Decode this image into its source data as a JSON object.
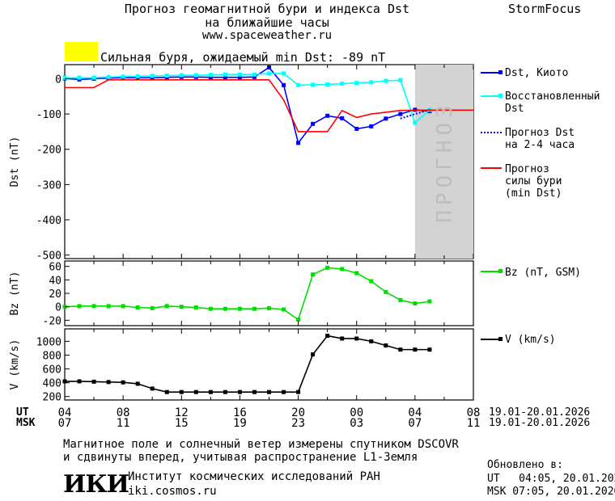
{
  "header": {
    "title_line1": "Прогноз геомагнитной бури и индекса Dst",
    "title_line2": "на ближайшие часы",
    "url": "www.spaceweather.ru",
    "brand": "StormFocus"
  },
  "status": {
    "text": "Сильная буря, ожидаемый min Dst: -89 nT",
    "color": "#ffff00"
  },
  "forecast_label": "ПРОГНОЗ",
  "legend": {
    "dst_kyoto": "Dst, Киото",
    "restored_line1": "Восстановленный",
    "restored_line2": "Dst",
    "forecast_line1": "Прогноз Dst",
    "forecast_line2": "на 2-4 часа",
    "storm_line1": "Прогноз",
    "storm_line2": "силы бури",
    "storm_line3": "(min Dst)",
    "bz": "Bz (nT, GSM)",
    "v": "V (km/s)"
  },
  "axes": {
    "ut_label": "UT",
    "msk_label": "MSK",
    "ut_ticks": [
      "04",
      "08",
      "12",
      "16",
      "20",
      "00",
      "04",
      "08"
    ],
    "msk_ticks": [
      "07",
      "11",
      "15",
      "19",
      "23",
      "03",
      "07",
      "11"
    ],
    "date_range_ut": "19.01-20.01.2026",
    "date_range_msk": "19.01-20.01.2026"
  },
  "chart_data": [
    {
      "type": "line",
      "ylabel": "Dst (nT)",
      "ylim": [
        -510,
        40
      ],
      "yticks": [
        0,
        -100,
        -200,
        -300,
        -400,
        -500
      ],
      "x_unit": "hours since 04 UT 19.01.2026",
      "xlim": [
        0,
        28
      ],
      "forecast_region": [
        24,
        28
      ],
      "series": [
        {
          "name": "Dst, Киото",
          "color": "#0000ff",
          "x": [
            0,
            1,
            2,
            3,
            4,
            5,
            6,
            7,
            8,
            9,
            10,
            11,
            12,
            13,
            14,
            15,
            16,
            17,
            18,
            19,
            20,
            21,
            22,
            23,
            24,
            25
          ],
          "y": [
            1,
            -2,
            0,
            2,
            3,
            3,
            3,
            4,
            5,
            5,
            4,
            4,
            4,
            5,
            32,
            -18,
            -182,
            -128,
            -105,
            -112,
            -142,
            -135,
            -113,
            -100,
            -88,
            -92
          ]
        },
        {
          "name": "Восстановленный Dst",
          "color": "#00ffff",
          "x": [
            0,
            1,
            2,
            3,
            4,
            5,
            6,
            7,
            8,
            9,
            10,
            11,
            12,
            13,
            14,
            15,
            16,
            17,
            18,
            19,
            20,
            21,
            22,
            23,
            24,
            25
          ],
          "y": [
            3,
            3,
            3,
            5,
            6,
            7,
            8,
            9,
            10,
            10,
            11,
            12,
            12,
            12,
            15,
            15,
            -18,
            -17,
            -16,
            -14,
            -12,
            -10,
            -6,
            -4,
            -125,
            -88
          ]
        },
        {
          "name": "Прогноз Dst на 2-4 часа",
          "color": "#0000ff",
          "style": "dotted",
          "x": [
            23,
            24,
            25
          ],
          "y": [
            -113,
            -100,
            -88
          ]
        },
        {
          "name": "Прогноз силы бури (min Dst)",
          "color": "#ff0000",
          "x": [
            0,
            2,
            3,
            4,
            5,
            6,
            7,
            8,
            9,
            10,
            11,
            12,
            13,
            14,
            15,
            16,
            17,
            18,
            19,
            20,
            21,
            22,
            23,
            24,
            25,
            26,
            27,
            28
          ],
          "y": [
            -25,
            -25,
            -3,
            -3,
            -3,
            -3,
            -3,
            -3,
            -3,
            -3,
            -3,
            -3,
            -3,
            -3,
            -60,
            -150,
            -150,
            -150,
            -90,
            -110,
            -100,
            -95,
            -90,
            -89,
            -89,
            -89,
            -89,
            -89
          ]
        }
      ]
    },
    {
      "type": "line",
      "ylabel": "Bz (nT)",
      "ylim": [
        -28,
        68
      ],
      "yticks": [
        60,
        40,
        20,
        0,
        -20
      ],
      "series": [
        {
          "name": "Bz (nT, GSM)",
          "color": "#00dd00",
          "x": [
            0,
            1,
            2,
            3,
            4,
            5,
            6,
            7,
            8,
            9,
            10,
            11,
            12,
            13,
            14,
            15,
            16,
            17,
            18,
            19,
            20,
            21,
            22,
            23,
            24,
            25
          ],
          "y": [
            0,
            1,
            1,
            1,
            1,
            -1,
            -2,
            1,
            0,
            -1,
            -3,
            -3,
            -3,
            -3,
            -2,
            -4,
            -19,
            48,
            58,
            56,
            50,
            38,
            22,
            10,
            5,
            8
          ]
        }
      ]
    },
    {
      "type": "line",
      "ylabel": "V (km/s)",
      "ylim": [
        150,
        1180
      ],
      "yticks": [
        1000,
        800,
        600,
        400,
        200
      ],
      "series": [
        {
          "name": "V (km/s)",
          "color": "#000000",
          "x": [
            0,
            1,
            2,
            3,
            4,
            5,
            6,
            7,
            8,
            9,
            10,
            11,
            12,
            13,
            14,
            15,
            16,
            17,
            18,
            19,
            20,
            21,
            22,
            23,
            24,
            25
          ],
          "y": [
            420,
            420,
            415,
            410,
            405,
            385,
            315,
            265,
            265,
            265,
            265,
            265,
            265,
            265,
            265,
            265,
            265,
            810,
            1080,
            1040,
            1040,
            1000,
            940,
            880,
            880,
            880
          ]
        }
      ]
    }
  ],
  "footer": {
    "line1": "Магнитное поле и солнечный ветер измерены спутником DSCOVR",
    "line2": "и сдвинуты вперед, учитывая распространение L1-Земля",
    "institute": "Институт космических исследований РАН",
    "institute_url": "iki.cosmos.ru",
    "logo_text": "ИКИ",
    "updated_label": "Обновлено в:",
    "updated_ut": "UT   04:05, 20.01.2026",
    "updated_msk": "MSK 07:05, 20.01.2026"
  }
}
